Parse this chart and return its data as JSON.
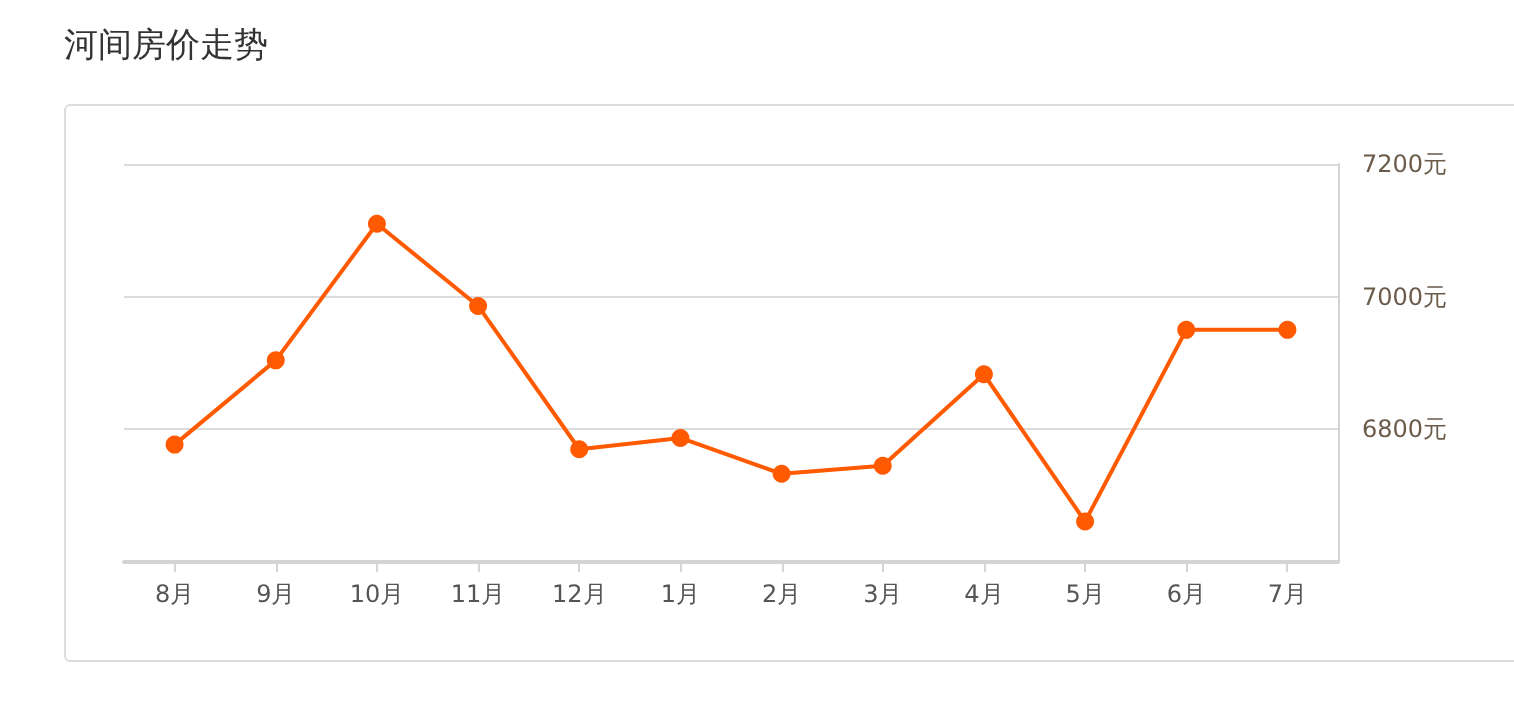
{
  "chart_data": {
    "type": "line",
    "title": "河间房价走势",
    "categories": [
      "8月",
      "9月",
      "10月",
      "11月",
      "12月",
      "1月",
      "2月",
      "3月",
      "4月",
      "5月",
      "6月",
      "7月"
    ],
    "series": [
      {
        "color": "#ff5a00",
        "values": [
          6777,
          6904,
          7110,
          6986,
          6770,
          6787,
          6733,
          6745,
          6883,
          6661,
          6950,
          6950
        ]
      }
    ],
    "ylim": [
      6600,
      7200
    ],
    "yticks": [
      {
        "value": 6600,
        "label": null
      },
      {
        "value": 6800,
        "label": "6800元"
      },
      {
        "value": 7000,
        "label": "7000元"
      },
      {
        "value": 7200,
        "label": "7200元"
      }
    ],
    "grid": "y",
    "marker": "circle",
    "line_style": "solid"
  }
}
